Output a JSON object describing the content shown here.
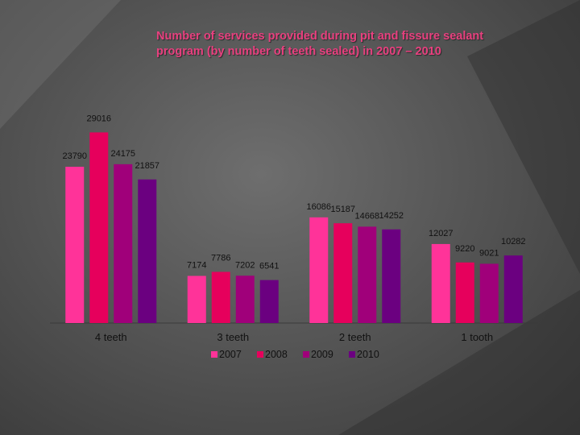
{
  "chart_data": {
    "type": "bar",
    "title_lines": [
      "Number of services provided during pit and fissure sealant",
      "program (by number of teeth sealed) in 2007 – 2010"
    ],
    "xlabel": "",
    "ylabel": "",
    "ylim": [
      0,
      32000
    ],
    "grid": false,
    "legend_position": "bottom",
    "categories": [
      "4 teeth",
      "3 teeth",
      "2 teeth",
      "1 tooth"
    ],
    "series": [
      {
        "name": "2007",
        "color": "#ff3399",
        "values": [
          23790,
          7174,
          16086,
          12027
        ]
      },
      {
        "name": "2008",
        "color": "#e6005c",
        "values": [
          29016,
          7786,
          15187,
          9220
        ]
      },
      {
        "name": "2009",
        "color": "#a0007a",
        "values": [
          24175,
          7202,
          14668,
          9021
        ]
      },
      {
        "name": "2010",
        "color": "#6b0080",
        "values": [
          21857,
          6541,
          14252,
          10282
        ]
      }
    ]
  }
}
